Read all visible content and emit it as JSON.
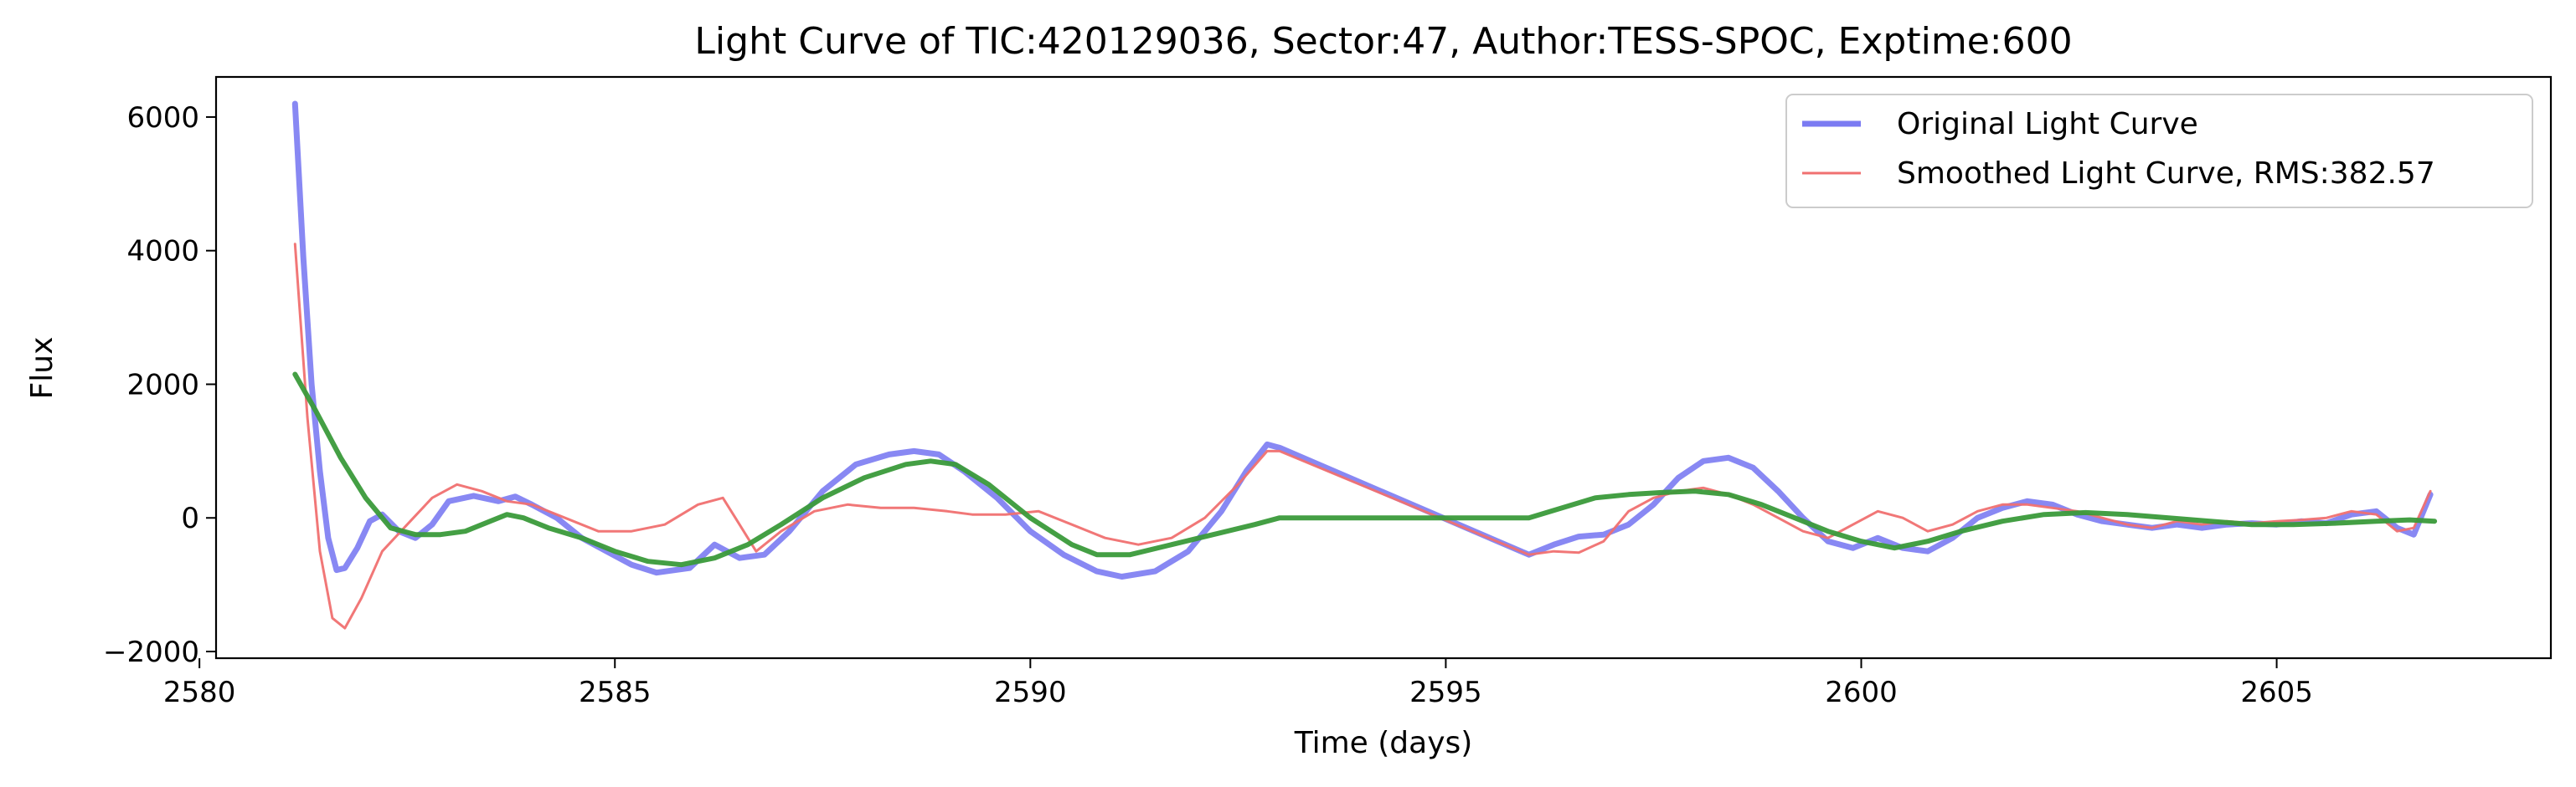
{
  "chart_data": {
    "type": "line",
    "title": "Light Curve of TIC:420129036, Sector:47, Author:TESS-SPOC, Exptime:600",
    "xlabel": "Time (days)",
    "ylabel": "Flux",
    "xlim": [
      2580.2,
      2608.3
    ],
    "ylim": [
      -2100,
      6600
    ],
    "xticks": [
      2580,
      2585,
      2590,
      2595,
      2600,
      2605
    ],
    "yticks": [
      -2000,
      0,
      2000,
      4000,
      6000
    ],
    "grid": false,
    "legend_position": "top-right",
    "series": [
      {
        "name": "Original Light Curve",
        "color": "#7b7bf2",
        "x": [
          2581.15,
          2581.25,
          2581.35,
          2581.45,
          2581.55,
          2581.65,
          2581.75,
          2581.9,
          2582.05,
          2582.2,
          2582.4,
          2582.6,
          2582.8,
          2583.0,
          2583.3,
          2583.6,
          2583.8,
          2584.0,
          2584.3,
          2584.6,
          2584.9,
          2585.2,
          2585.5,
          2585.9,
          2586.2,
          2586.5,
          2586.8,
          2587.1,
          2587.5,
          2587.9,
          2588.3,
          2588.6,
          2588.9,
          2589.2,
          2589.6,
          2590.0,
          2590.4,
          2590.8,
          2591.1,
          2591.5,
          2591.9,
          2592.3,
          2592.6,
          2592.85,
          2593.0,
          2596.0,
          2596.3,
          2596.6,
          2596.9,
          2597.2,
          2597.5,
          2597.8,
          2598.1,
          2598.4,
          2598.7,
          2599.0,
          2599.3,
          2599.6,
          2599.9,
          2600.2,
          2600.5,
          2600.8,
          2601.1,
          2601.4,
          2601.7,
          2602.0,
          2602.3,
          2602.6,
          2602.9,
          2603.2,
          2603.5,
          2603.8,
          2604.1,
          2604.4,
          2604.7,
          2605.0,
          2605.3,
          2605.6,
          2605.9,
          2606.2,
          2606.45,
          2606.65,
          2606.85
        ],
        "values": [
          6200,
          3900,
          2000,
          700,
          -300,
          -780,
          -750,
          -450,
          -50,
          50,
          -200,
          -300,
          -100,
          250,
          330,
          250,
          320,
          200,
          0,
          -300,
          -500,
          -700,
          -820,
          -750,
          -400,
          -600,
          -550,
          -200,
          400,
          800,
          950,
          1000,
          950,
          700,
          300,
          -200,
          -550,
          -800,
          -880,
          -800,
          -500,
          100,
          700,
          1100,
          1050,
          -550,
          -400,
          -280,
          -250,
          -100,
          200,
          600,
          850,
          900,
          750,
          400,
          0,
          -350,
          -450,
          -300,
          -450,
          -500,
          -300,
          0,
          150,
          250,
          200,
          50,
          -50,
          -100,
          -150,
          -100,
          -150,
          -100,
          -80,
          -100,
          -50,
          -80,
          50,
          100,
          -150,
          -250,
          350
        ]
      },
      {
        "name": "Smoothed Light Curve, RMS:382.57",
        "color": "#f07070",
        "x": [
          2581.15,
          2581.3,
          2581.45,
          2581.6,
          2581.75,
          2581.95,
          2582.2,
          2582.5,
          2582.8,
          2583.1,
          2583.4,
          2583.7,
          2584.0,
          2584.4,
          2584.8,
          2585.2,
          2585.6,
          2586.0,
          2586.3,
          2586.5,
          2586.7,
          2587.0,
          2587.4,
          2587.8,
          2588.2,
          2588.6,
          2589.0,
          2589.3,
          2589.7,
          2590.1,
          2590.5,
          2590.9,
          2591.3,
          2591.7,
          2592.1,
          2592.5,
          2592.85,
          2593.0,
          2596.0,
          2596.3,
          2596.6,
          2596.9,
          2597.2,
          2597.5,
          2597.8,
          2598.1,
          2598.4,
          2598.7,
          2599.0,
          2599.3,
          2599.6,
          2599.9,
          2600.2,
          2600.5,
          2600.8,
          2601.1,
          2601.4,
          2601.7,
          2602.0,
          2602.3,
          2602.6,
          2602.9,
          2603.2,
          2603.5,
          2603.8,
          2604.1,
          2604.4,
          2604.7,
          2605.0,
          2605.3,
          2605.6,
          2605.9,
          2606.2,
          2606.45,
          2606.65,
          2606.85
        ],
        "values": [
          4100,
          1500,
          -500,
          -1500,
          -1650,
          -1200,
          -500,
          -100,
          300,
          500,
          400,
          250,
          200,
          0,
          -200,
          -200,
          -100,
          200,
          300,
          -100,
          -500,
          -200,
          100,
          200,
          150,
          150,
          100,
          50,
          50,
          100,
          -100,
          -300,
          -400,
          -300,
          0,
          500,
          1000,
          1000,
          -550,
          -500,
          -520,
          -350,
          100,
          300,
          400,
          450,
          350,
          200,
          0,
          -200,
          -300,
          -100,
          100,
          0,
          -200,
          -100,
          100,
          200,
          200,
          150,
          100,
          0,
          -100,
          -150,
          -50,
          -100,
          -50,
          -80,
          -50,
          -30,
          0,
          100,
          50,
          -200,
          -150,
          400
        ]
      },
      {
        "name": "",
        "color": "#3a9a3a",
        "x": [
          2581.15,
          2581.4,
          2581.7,
          2582.0,
          2582.3,
          2582.6,
          2582.9,
          2583.2,
          2583.5,
          2583.7,
          2583.9,
          2584.2,
          2584.6,
          2585.0,
          2585.4,
          2585.8,
          2586.2,
          2586.6,
          2587.0,
          2587.5,
          2588.0,
          2588.5,
          2588.8,
          2589.1,
          2589.5,
          2590.0,
          2590.5,
          2590.8,
          2591.2,
          2591.7,
          2592.2,
          2592.7,
          2593.0,
          2593.5,
          2594.5,
          2595.5,
          2596.0,
          2596.4,
          2596.8,
          2597.2,
          2597.6,
          2598.0,
          2598.4,
          2598.8,
          2599.2,
          2599.6,
          2600.0,
          2600.4,
          2600.8,
          2601.2,
          2601.7,
          2602.2,
          2602.7,
          2603.2,
          2603.7,
          2604.2,
          2604.7,
          2605.2,
          2605.7,
          2606.2,
          2606.6,
          2606.9
        ],
        "values": [
          2150,
          1600,
          900,
          300,
          -150,
          -250,
          -250,
          -200,
          -50,
          50,
          0,
          -150,
          -300,
          -500,
          -650,
          -700,
          -600,
          -400,
          -100,
          300,
          600,
          800,
          850,
          800,
          500,
          0,
          -400,
          -550,
          -550,
          -400,
          -250,
          -100,
          0,
          0,
          0,
          0,
          0,
          150,
          300,
          350,
          380,
          400,
          350,
          200,
          0,
          -200,
          -350,
          -450,
          -350,
          -200,
          -50,
          50,
          80,
          50,
          0,
          -50,
          -100,
          -100,
          -80,
          -50,
          -30,
          -50
        ]
      }
    ]
  }
}
